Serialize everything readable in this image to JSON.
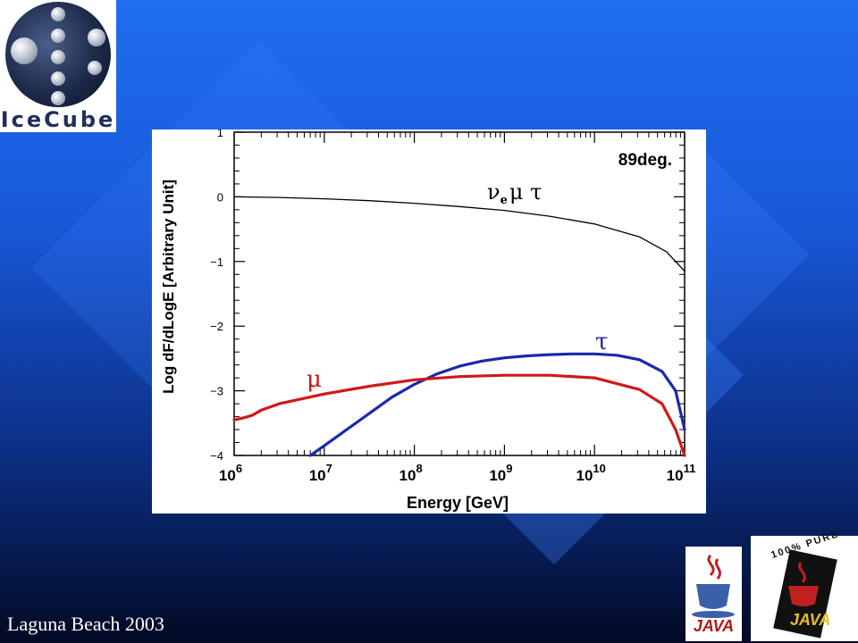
{
  "logo": {
    "text": "IceCube",
    "icon": "icecube-logo-icon"
  },
  "footer": {
    "text": "Laguna Beach 2003"
  },
  "badges": {
    "java_small_label": "JAVA",
    "java_pure_label": "JAVA",
    "java_pure_ring_text": "100% PURE"
  },
  "chart_data": {
    "type": "line",
    "title": "89deg.",
    "xlabel": "Energy [GeV]",
    "ylabel": "Log dF/dLogE [Arbitrary Unit]",
    "x_scale": "log",
    "xlim": [
      1000000,
      100000000000
    ],
    "ylim": [
      -4,
      1
    ],
    "x_ticks": [
      1000000,
      10000000,
      100000000,
      1000000000,
      10000000000,
      100000000000
    ],
    "x_tick_labels": [
      {
        "base": "10",
        "exp": "6"
      },
      {
        "base": "10",
        "exp": "7"
      },
      {
        "base": "10",
        "exp": "8"
      },
      {
        "base": "10",
        "exp": "9"
      },
      {
        "base": "10",
        "exp": "10"
      },
      {
        "base": "10",
        "exp": "11"
      }
    ],
    "y_ticks": [
      1,
      0,
      -1,
      -2,
      -3,
      -4
    ],
    "y_tick_labels": [
      "1",
      "0",
      "−1",
      "−2",
      "−3",
      "−4"
    ],
    "grid": false,
    "colors": {
      "nu": "#000000",
      "tau": "#1a2aa8",
      "mu": "#d01818"
    },
    "series": [
      {
        "label_main": "ν",
        "label_sub": "e",
        "label_rest": "μ τ",
        "color": "#000000",
        "x": [
          1000000,
          3160000,
          10000000,
          31600000,
          100000000,
          316000000,
          1000000000,
          3160000000,
          10000000000,
          31600000000,
          63100000000,
          79400000000,
          100000000000
        ],
        "y": [
          0.0,
          -0.01,
          -0.03,
          -0.06,
          -0.1,
          -0.15,
          -0.21,
          -0.3,
          -0.42,
          -0.62,
          -0.85,
          -1.0,
          -1.15
        ]
      },
      {
        "label_main": "τ",
        "color": "#1a2aa8",
        "x": [
          7000000,
          10000000,
          17800000,
          31600000,
          56200000,
          100000000,
          178000000,
          316000000,
          562000000,
          1000000000,
          1780000000,
          3160000000,
          5620000000,
          10000000000,
          17800000000,
          31600000000,
          56200000000,
          79400000000,
          100000000000
        ],
        "y": [
          -4.0,
          -3.85,
          -3.6,
          -3.35,
          -3.1,
          -2.9,
          -2.74,
          -2.62,
          -2.54,
          -2.49,
          -2.46,
          -2.44,
          -2.43,
          -2.43,
          -2.45,
          -2.52,
          -2.7,
          -3.0,
          -3.6
        ]
      },
      {
        "label_main": "μ",
        "color": "#d01818",
        "x": [
          1000000,
          1260000,
          1580000,
          2000000,
          3160000,
          10000000,
          31600000,
          100000000,
          316000000,
          1000000000,
          3160000000,
          10000000000,
          31600000000,
          56200000000,
          79400000000,
          100000000000
        ],
        "y": [
          -3.45,
          -3.42,
          -3.38,
          -3.3,
          -3.2,
          -3.05,
          -2.93,
          -2.83,
          -2.78,
          -2.76,
          -2.76,
          -2.8,
          -2.98,
          -3.2,
          -3.6,
          -4.0
        ]
      }
    ]
  }
}
